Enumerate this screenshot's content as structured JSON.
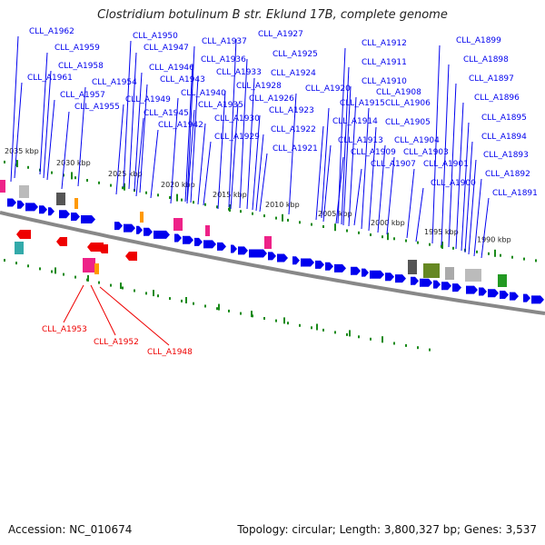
{
  "title": "Clostridium botulinum B str. Eklund 17B, complete genome",
  "footer": {
    "accession": "Accession: NC_010674",
    "summary": "Topology: circular; Length: 3,800,327 bp; Genes: 3,537"
  },
  "colors": {
    "forward": "#0000ee",
    "reverse": "#ee0000",
    "tick": "#1a8a1a",
    "backbone": "#888888"
  },
  "kbp_ticks": [
    "2035 kbp",
    "2030 kbp",
    "2025 kbp",
    "2020 kbp",
    "2015 kbp",
    "2010 kbp",
    "2005 kbp",
    "2000 kbp",
    "1995 kbp",
    "1990 kbp"
  ],
  "labels_top": [
    "CLL_A1962",
    "CLL_A1959",
    "CLL_A1958",
    "CLL_A1961",
    "CLL_A1957",
    "CLL_A1954",
    "CLL_A1955",
    "CLL_A1950",
    "CLL_A1947",
    "CLL_A1946",
    "CLL_A1943",
    "CLL_A1949",
    "CLL_A1945",
    "CLL_A1942",
    "CLL_A1937",
    "CLL_A1936",
    "CLL_A1933",
    "CLL_A1940",
    "CLL_A1935",
    "CLL_A1930",
    "CLL_A1929",
    "CLL_A1927",
    "CLL_A1925",
    "CLL_A1924",
    "CLL_A1928",
    "CLL_A1926",
    "CLL_A1923",
    "CLL_A1922",
    "CLL_A1921",
    "CLL_A1920",
    "CLL_A1915",
    "CLL_A1914",
    "CLL_A1913",
    "CLL_A1909",
    "CLL_A1907",
    "CLL_A1912",
    "CLL_A1911",
    "CLL_A1910",
    "CLL_A1908",
    "CLL_A1906",
    "CLL_A1905",
    "CLL_A1904",
    "CLL_A1903",
    "CLL_A1901",
    "CLL_A1900",
    "CLL_A1899",
    "CLL_A1898",
    "CLL_A1897",
    "CLL_A1896",
    "CLL_A1895",
    "CLL_A1894",
    "CLL_A1893",
    "CLL_A1892",
    "CLL_A1891"
  ],
  "labels_bottom": [
    "CLL_A1953",
    "CLL_A1952",
    "CLL_A1948"
  ]
}
